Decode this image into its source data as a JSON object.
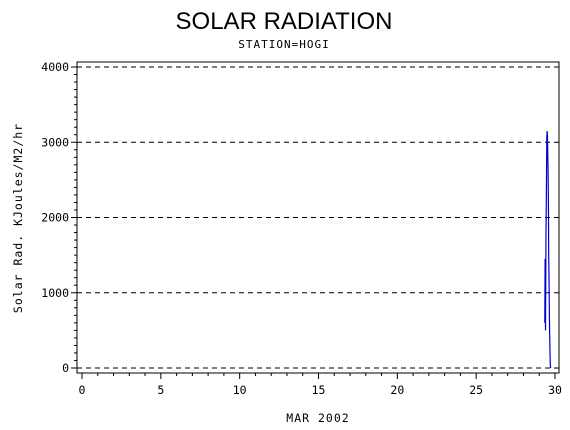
{
  "chart_data": {
    "type": "line",
    "title": "SOLAR RADIATION",
    "subtitle": "STATION=HOGI",
    "xlabel": "MAR 2002",
    "ylabel": "Solar Rad. KJoules/M2/hr",
    "xlim": [
      0,
      30
    ],
    "ylim": [
      0,
      4000
    ],
    "x_ticks": [
      0,
      5,
      10,
      15,
      20,
      25,
      30
    ],
    "y_ticks": [
      0,
      1000,
      2000,
      3000,
      4000
    ],
    "grid": "horizontal dashed",
    "series": [
      {
        "color": "#0000cc",
        "x": [
          29.35,
          29.37,
          29.4,
          29.43,
          29.46,
          29.48,
          29.5,
          29.52,
          29.54,
          29.56,
          29.58,
          29.6,
          29.62,
          29.64,
          29.66,
          29.68,
          29.7,
          29.72
        ],
        "y": [
          600,
          1450,
          500,
          1800,
          2500,
          3050,
          3150,
          3100,
          2900,
          2600,
          2200,
          1500,
          1200,
          800,
          500,
          200,
          50,
          0
        ]
      }
    ]
  }
}
